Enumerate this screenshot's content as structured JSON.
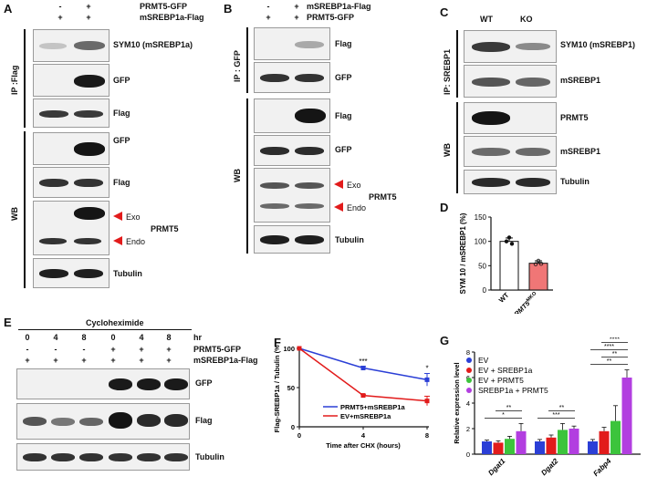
{
  "panels": {
    "A": {
      "letter": "A",
      "header": {
        "row1_label": "PRMT5-GFP",
        "row1_signs": [
          "-",
          "+"
        ],
        "row2_label": "mSREBP1a-Flag",
        "row2_signs": [
          "+",
          "+"
        ]
      },
      "side_ip": "IP :Flag",
      "side_wb": "WB",
      "blots": [
        {
          "label": "SYM10 (mSREBP1a)"
        },
        {
          "label": "GFP"
        },
        {
          "label": "Flag"
        },
        {
          "label": "GFP"
        },
        {
          "label": "Flag"
        },
        {
          "label": "PRMT5",
          "exo": "Exo",
          "endo": "Endo"
        },
        {
          "label": "Tubulin"
        }
      ]
    },
    "B": {
      "letter": "B",
      "header": {
        "row1_label": "mSREBP1a-Flag",
        "row1_signs": [
          "-",
          "+"
        ],
        "row2_label": "PRMT5-GFP",
        "row2_signs": [
          "+",
          "+"
        ]
      },
      "side_ip": "IP : GFP",
      "side_wb": "WB",
      "blots": [
        {
          "label": "Flag"
        },
        {
          "label": "GFP"
        },
        {
          "label": "Flag"
        },
        {
          "label": "GFP"
        },
        {
          "label": "PRMT5",
          "exo": "Exo",
          "endo": "Endo"
        },
        {
          "label": "Tubulin"
        }
      ]
    },
    "C": {
      "letter": "C",
      "header": {
        "col1": "WT",
        "col2": "KO"
      },
      "side_ip": "IP: SREBP1",
      "side_wb": "WB",
      "blots": [
        {
          "label": "SYM10 (mSREBP1)"
        },
        {
          "label": "mSREBP1"
        },
        {
          "label": "PRMT5"
        },
        {
          "label": "mSREBP1"
        },
        {
          "label": "Tubulin"
        }
      ]
    },
    "E": {
      "letter": "E",
      "title": "Cycloheximide",
      "hr_label": "hr",
      "hr_values": [
        "0",
        "4",
        "8",
        "0",
        "4",
        "8"
      ],
      "row1_label": "PRMT5-GFP",
      "row1_signs": [
        "-",
        "-",
        "-",
        "+",
        "+",
        "+"
      ],
      "row2_label": "mSREBP1a-Flag",
      "row2_signs": [
        "+",
        "+",
        "+",
        "+",
        "+",
        "+"
      ],
      "blots": [
        {
          "label": "GFP"
        },
        {
          "label": "Flag"
        },
        {
          "label": "Tubulin"
        }
      ]
    }
  },
  "chart_data": [
    {
      "panel": "D",
      "type": "bar",
      "letter": "D",
      "ylabel": "SYM 10 / mSREBP1 (%)",
      "categories": [
        "WT",
        "PRMT5"
      ],
      "category_superscript": [
        "",
        "MKO"
      ],
      "values": [
        100,
        55
      ],
      "errors": [
        7,
        5
      ],
      "points": [
        [
          100,
          108,
          95
        ],
        [
          53,
          60,
          54
        ]
      ],
      "colors": [
        "#ffffff",
        "#f07676"
      ],
      "ylim": [
        0,
        150
      ],
      "yticks": [
        0,
        50,
        100,
        150
      ]
    },
    {
      "panel": "F",
      "type": "line",
      "letter": "F",
      "xlabel": "Time after CHX (hours)",
      "ylabel": "Flag-SREBP1a / Tubulin (%)",
      "x": [
        0,
        4,
        8
      ],
      "xticks": [
        0,
        4,
        8
      ],
      "yticks": [
        0,
        50,
        100
      ],
      "xlim": [
        0,
        8
      ],
      "ylim": [
        0,
        100
      ],
      "series": [
        {
          "name": "PRMT5+mSREBP1a",
          "values": [
            100,
            75,
            60
          ],
          "errors": [
            0,
            2,
            8
          ],
          "color": "#2b3fd6"
        },
        {
          "name": "EV+mSREBP1a",
          "values": [
            100,
            40,
            33
          ],
          "errors": [
            0,
            1,
            6
          ],
          "color": "#e21b1b"
        }
      ],
      "significance": [
        {
          "x": 4,
          "label": "***"
        },
        {
          "x": 8,
          "label": "*"
        }
      ]
    },
    {
      "panel": "G",
      "type": "bar",
      "letter": "G",
      "ylabel": "Relative expression level",
      "categories": [
        "Dgat1",
        "Dgat2",
        "Fabp4"
      ],
      "ylim": [
        0,
        8
      ],
      "yticks": [
        0,
        2,
        4,
        6,
        8
      ],
      "series": [
        {
          "name": "EV",
          "color": "#2b3fd6",
          "values": [
            1.0,
            1.0,
            1.0
          ],
          "errors": [
            0.1,
            0.15,
            0.15
          ]
        },
        {
          "name": "EV + SREBP1a",
          "color": "#e21b1b",
          "values": [
            0.9,
            1.3,
            1.8
          ],
          "errors": [
            0.15,
            0.2,
            0.3
          ]
        },
        {
          "name": "EV + PRMT5",
          "color": "#3cc43c",
          "values": [
            1.2,
            1.9,
            2.6
          ],
          "errors": [
            0.2,
            0.5,
            1.2
          ]
        },
        {
          "name": "SREBP1a + PRMT5",
          "color": "#b23ee0",
          "values": [
            1.8,
            2.0,
            6.0
          ],
          "errors": [
            0.6,
            0.2,
            0.6
          ]
        }
      ],
      "significance": [
        {
          "label": "*",
          "group": 0
        },
        {
          "label": "**",
          "group": 0
        },
        {
          "label": "***",
          "group": 1
        },
        {
          "label": "**",
          "group": 1
        },
        {
          "label": "**",
          "group": 2
        },
        {
          "label": "**",
          "group": 2
        },
        {
          "label": "****",
          "group": 2
        },
        {
          "label": "****",
          "group": 2
        },
        {
          "label": "***",
          "group": 2
        }
      ]
    }
  ]
}
